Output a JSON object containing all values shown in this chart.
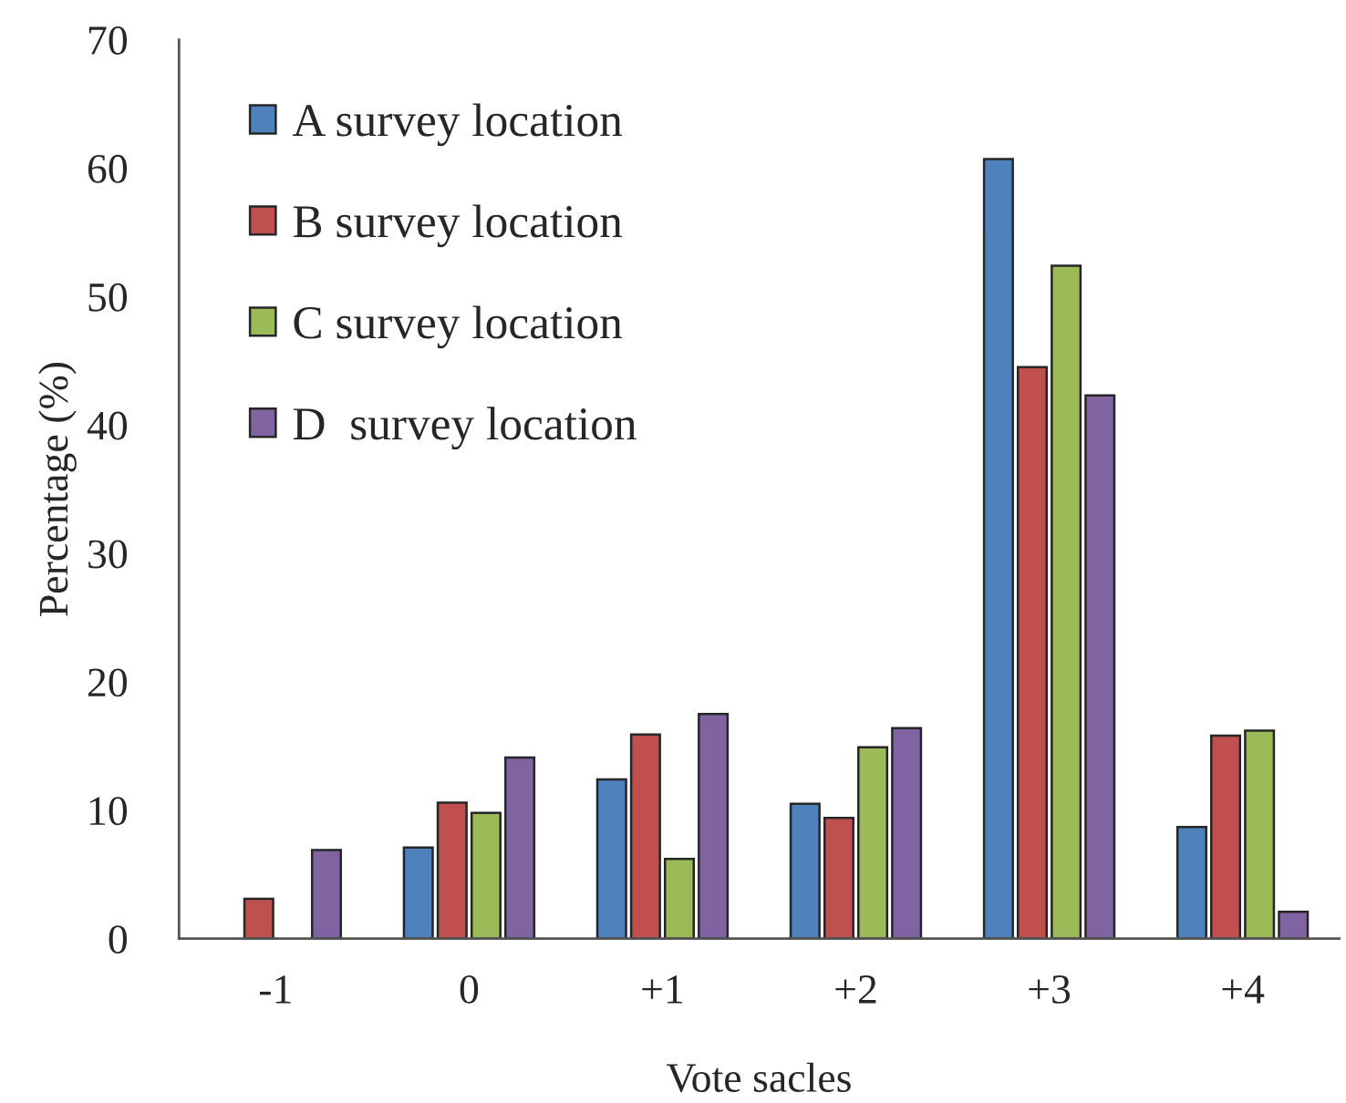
{
  "chart_data": {
    "type": "bar",
    "categories": [
      "-1",
      "0",
      "+1",
      "+2",
      "+3",
      "+4"
    ],
    "series": [
      {
        "name": "A survey location",
        "color": "#4f81bd",
        "values": [
          null,
          7.1,
          12.4,
          10.5,
          60.7,
          8.7
        ]
      },
      {
        "name": "B survey location",
        "color": "#c0504d",
        "values": [
          3.1,
          10.6,
          15.9,
          9.4,
          44.5,
          15.8
        ]
      },
      {
        "name": "C survey location",
        "color": "#9bbb59",
        "values": [
          null,
          9.8,
          6.2,
          14.9,
          52.4,
          16.2
        ]
      },
      {
        "name": "D  survey location",
        "color": "#8064a2",
        "values": [
          6.9,
          14.1,
          17.5,
          16.4,
          42.3,
          2.1
        ]
      }
    ],
    "xlabel": "Vote sacles",
    "ylabel": "Percentage (%)",
    "ylim": [
      0,
      70
    ],
    "yticks": [
      0,
      10,
      20,
      30,
      40,
      50,
      60,
      70
    ],
    "legend": "top left",
    "grid": false
  }
}
